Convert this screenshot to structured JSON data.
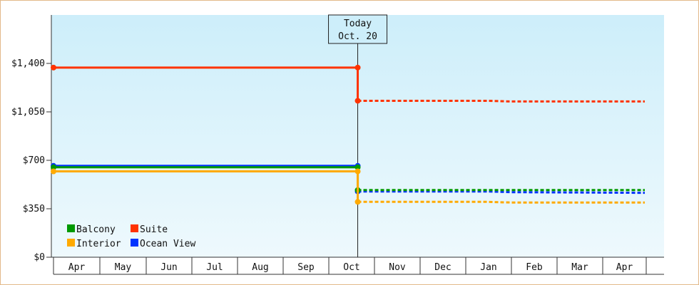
{
  "chart_data": {
    "type": "line",
    "title": "",
    "xlabel": "",
    "ylabel": "",
    "ylim": [
      0,
      1750
    ],
    "yticks": [
      {
        "value": 0,
        "label": "$0"
      },
      {
        "value": 350,
        "label": "$350"
      },
      {
        "value": 700,
        "label": "$700"
      },
      {
        "value": 1050,
        "label": "$1,050"
      },
      {
        "value": 1400,
        "label": "$1,400"
      }
    ],
    "month_labels": [
      "Apr",
      "May",
      "Jun",
      "Jul",
      "Aug",
      "Sep",
      "Oct",
      "Nov",
      "Dec",
      "Jan",
      "Feb",
      "Mar",
      "Apr"
    ],
    "today_marker": {
      "line1": "Today",
      "line2": "Oct. 20"
    },
    "legend_position": "bottom-left",
    "grid": false,
    "series": [
      {
        "name": "Suite",
        "color": "#ff3300",
        "history": [
          {
            "x": "Apr 1",
            "y": 1370
          },
          {
            "x": "Oct 20",
            "y": 1370
          }
        ],
        "forecast": [
          {
            "x": "Oct 20",
            "y": 1130
          },
          {
            "x": "Jan 15",
            "y": 1130
          },
          {
            "x": "Feb 1",
            "y": 1125
          },
          {
            "x": "Apr 30",
            "y": 1125
          }
        ]
      },
      {
        "name": "Ocean View",
        "color": "#0033ff",
        "history": [
          {
            "x": "Apr 1",
            "y": 660
          },
          {
            "x": "Oct 20",
            "y": 660
          }
        ],
        "forecast": [
          {
            "x": "Oct 20",
            "y": 475
          },
          {
            "x": "Jan 15",
            "y": 475
          },
          {
            "x": "Feb 1",
            "y": 470
          },
          {
            "x": "Apr 30",
            "y": 465
          }
        ]
      },
      {
        "name": "Balcony",
        "color": "#009900",
        "history": [
          {
            "x": "Apr 1",
            "y": 650
          },
          {
            "x": "Oct 20",
            "y": 650
          }
        ],
        "forecast": [
          {
            "x": "Oct 20",
            "y": 485
          },
          {
            "x": "Jan 15",
            "y": 485
          },
          {
            "x": "Feb 1",
            "y": 485
          },
          {
            "x": "Apr 30",
            "y": 485
          }
        ]
      },
      {
        "name": "Interior",
        "color": "#ffaa00",
        "history": [
          {
            "x": "Apr 1",
            "y": 620
          },
          {
            "x": "Oct 20",
            "y": 620
          }
        ],
        "forecast": [
          {
            "x": "Oct 20",
            "y": 400
          },
          {
            "x": "Jan 15",
            "y": 400
          },
          {
            "x": "Feb 1",
            "y": 395
          },
          {
            "x": "Apr 30",
            "y": 395
          }
        ]
      }
    ],
    "legend": [
      {
        "name": "Balcony",
        "color": "#009900"
      },
      {
        "name": "Suite",
        "color": "#ff3300"
      },
      {
        "name": "Interior",
        "color": "#ffaa00"
      },
      {
        "name": "Ocean View",
        "color": "#0033ff"
      }
    ]
  }
}
